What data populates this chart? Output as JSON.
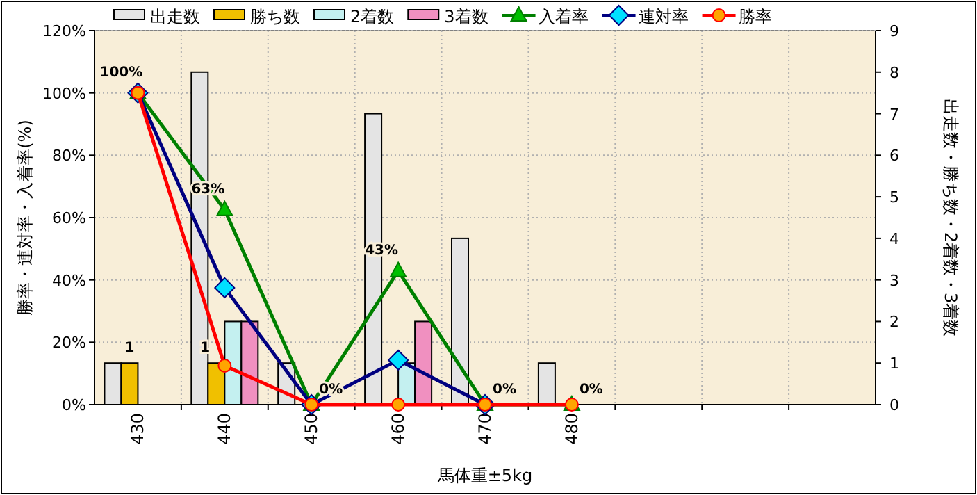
{
  "chart_data": {
    "type": "bar",
    "xlabel": "馬体重±5kg",
    "ylabel": "勝率・連対率・入着率(%)",
    "y2label": "出走数・勝ち数・2着数・3着数",
    "categories": [
      "430",
      "440",
      "450",
      "460",
      "470",
      "480",
      null,
      null,
      null
    ],
    "ylim": [
      0,
      120
    ],
    "yticks": [
      {
        "value": 0,
        "label": "0%"
      },
      {
        "value": 20,
        "label": "20%"
      },
      {
        "value": 40,
        "label": "40%"
      },
      {
        "value": 60,
        "label": "60%"
      },
      {
        "value": 80,
        "label": "80%"
      },
      {
        "value": 100,
        "label": "100%"
      },
      {
        "value": 120,
        "label": "120%"
      }
    ],
    "y2lim": [
      0,
      9
    ],
    "y2ticks": [
      0,
      1,
      2,
      3,
      4,
      5,
      6,
      7,
      8,
      9
    ],
    "grid": true,
    "legend": "top",
    "series": [
      {
        "name": "出走数",
        "axis": "y2",
        "color": "#e4e4e4",
        "values": [
          1,
          8,
          1,
          7,
          4,
          1,
          null,
          null,
          null
        ]
      },
      {
        "name": "勝ち数",
        "axis": "y2",
        "color": "#f0c000",
        "values": [
          1,
          1,
          0,
          0,
          0,
          0,
          null,
          null,
          null
        ],
        "value_labels": [
          "1",
          "1",
          null,
          null,
          null,
          null,
          null,
          null,
          null
        ]
      },
      {
        "name": "2着数",
        "axis": "y2",
        "color": "#c4f0f0",
        "values": [
          0,
          2,
          0,
          1,
          0,
          0,
          null,
          null,
          null
        ]
      },
      {
        "name": "3着数",
        "axis": "y2",
        "color": "#f090c0",
        "values": [
          0,
          2,
          0,
          2,
          0,
          0,
          null,
          null,
          null
        ]
      },
      {
        "name": "入着率",
        "type": "line",
        "color": "#008000",
        "marker": "triangle",
        "values": [
          100,
          62.5,
          0,
          42.9,
          0,
          0,
          null,
          null,
          null
        ],
        "value_labels": [
          "100%",
          "63%",
          "0%",
          "43%",
          "0%",
          "0%",
          null,
          null,
          null
        ]
      },
      {
        "name": "連対率",
        "type": "line",
        "color": "#000080",
        "marker": "diamond",
        "values": [
          100,
          37.5,
          0,
          14.3,
          0,
          null,
          null,
          null,
          null
        ]
      },
      {
        "name": "勝率",
        "type": "line",
        "color": "#ff0000",
        "marker": "circle",
        "values": [
          100,
          12.5,
          0,
          0,
          0,
          0,
          null,
          null,
          null
        ]
      }
    ]
  }
}
